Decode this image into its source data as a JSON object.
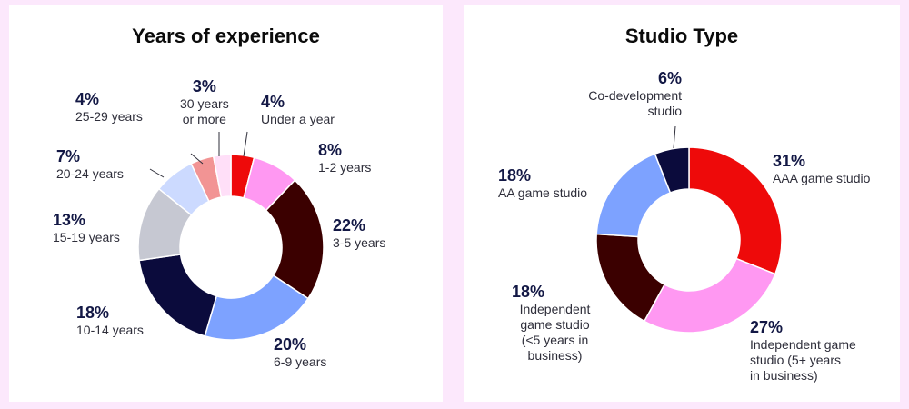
{
  "chart_data": [
    {
      "type": "donut",
      "title": "Years of experience",
      "categories": [
        "Under a year",
        "1-2 years",
        "3-5 years",
        "6-9 years",
        "10-14 years",
        "15-19 years",
        "20-24 years",
        "25-29 years",
        "30 years or more"
      ],
      "values": [
        4,
        8,
        22,
        20,
        18,
        13,
        7,
        4,
        3
      ],
      "value_labels": [
        "4%",
        "8%",
        "22%",
        "20%",
        "18%",
        "13%",
        "7%",
        "4%",
        "3%"
      ],
      "label_text": [
        "Under a year",
        "1-2 years",
        "3-5 years",
        "6-9 years",
        "10-14 years",
        "15-19 years",
        "20-24 years",
        "25-29 years",
        "30 years\nor more"
      ],
      "colors": [
        "#ee0a0a",
        "#ff98f2",
        "#3b0000",
        "#7da2ff",
        "#0b0b3c",
        "#c6c8d2",
        "#ccdaff",
        "#f29494",
        "#ffdff8"
      ]
    },
    {
      "type": "donut",
      "title": "Studio Type",
      "categories": [
        "AAA game studio",
        "Independent game studio (5+ years in business)",
        "Independent game studio (<5 years in business)",
        "AA game studio",
        "Co-development studio"
      ],
      "values": [
        31,
        27,
        18,
        18,
        6
      ],
      "value_labels": [
        "31%",
        "27%",
        "18%",
        "18%",
        "6%"
      ],
      "label_text": [
        "AAA game studio",
        "Independent game\nstudio (5+ years\nin business)",
        "Independent\ngame studio\n(<5 years in\nbusiness)",
        "AA game studio",
        "Co-development\nstudio"
      ],
      "colors": [
        "#ee0a0a",
        "#ff98f2",
        "#3b0000",
        "#7da2ff",
        "#0b0b3c"
      ]
    }
  ]
}
